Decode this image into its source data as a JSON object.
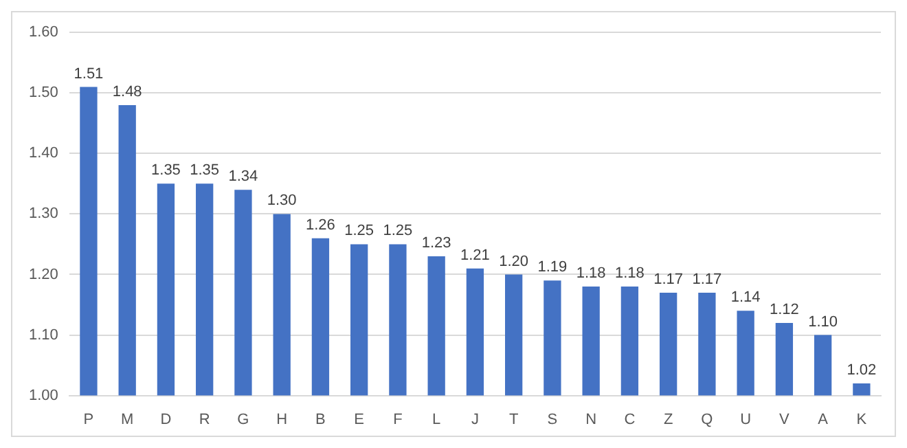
{
  "chart_data": {
    "type": "bar",
    "categories": [
      "P",
      "M",
      "D",
      "R",
      "G",
      "H",
      "B",
      "E",
      "F",
      "L",
      "J",
      "T",
      "S",
      "N",
      "C",
      "Z",
      "Q",
      "U",
      "V",
      "A",
      "K"
    ],
    "values": [
      1.51,
      1.48,
      1.35,
      1.35,
      1.34,
      1.3,
      1.26,
      1.25,
      1.25,
      1.23,
      1.21,
      1.2,
      1.19,
      1.18,
      1.18,
      1.17,
      1.17,
      1.14,
      1.12,
      1.1,
      1.02
    ],
    "value_labels": [
      "1.51",
      "1.48",
      "1.35",
      "1.35",
      "1.34",
      "1.30",
      "1.26",
      "1.25",
      "1.25",
      "1.23",
      "1.21",
      "1.20",
      "1.19",
      "1.18",
      "1.18",
      "1.17",
      "1.17",
      "1.14",
      "1.12",
      "1.10",
      "1.02"
    ],
    "color": "#4472c4",
    "ylim": [
      1,
      1.6
    ],
    "yticks": [
      {
        "value": 1,
        "label": "1.00"
      },
      {
        "value": 1.1,
        "label": "1.10"
      },
      {
        "value": 1.2,
        "label": "1.20"
      },
      {
        "value": 1.3,
        "label": "1.30"
      },
      {
        "value": 1.4,
        "label": "1.40"
      },
      {
        "value": 1.5,
        "label": "1.50"
      },
      {
        "value": 1.6,
        "label": "1.60"
      }
    ],
    "grid": "y"
  }
}
